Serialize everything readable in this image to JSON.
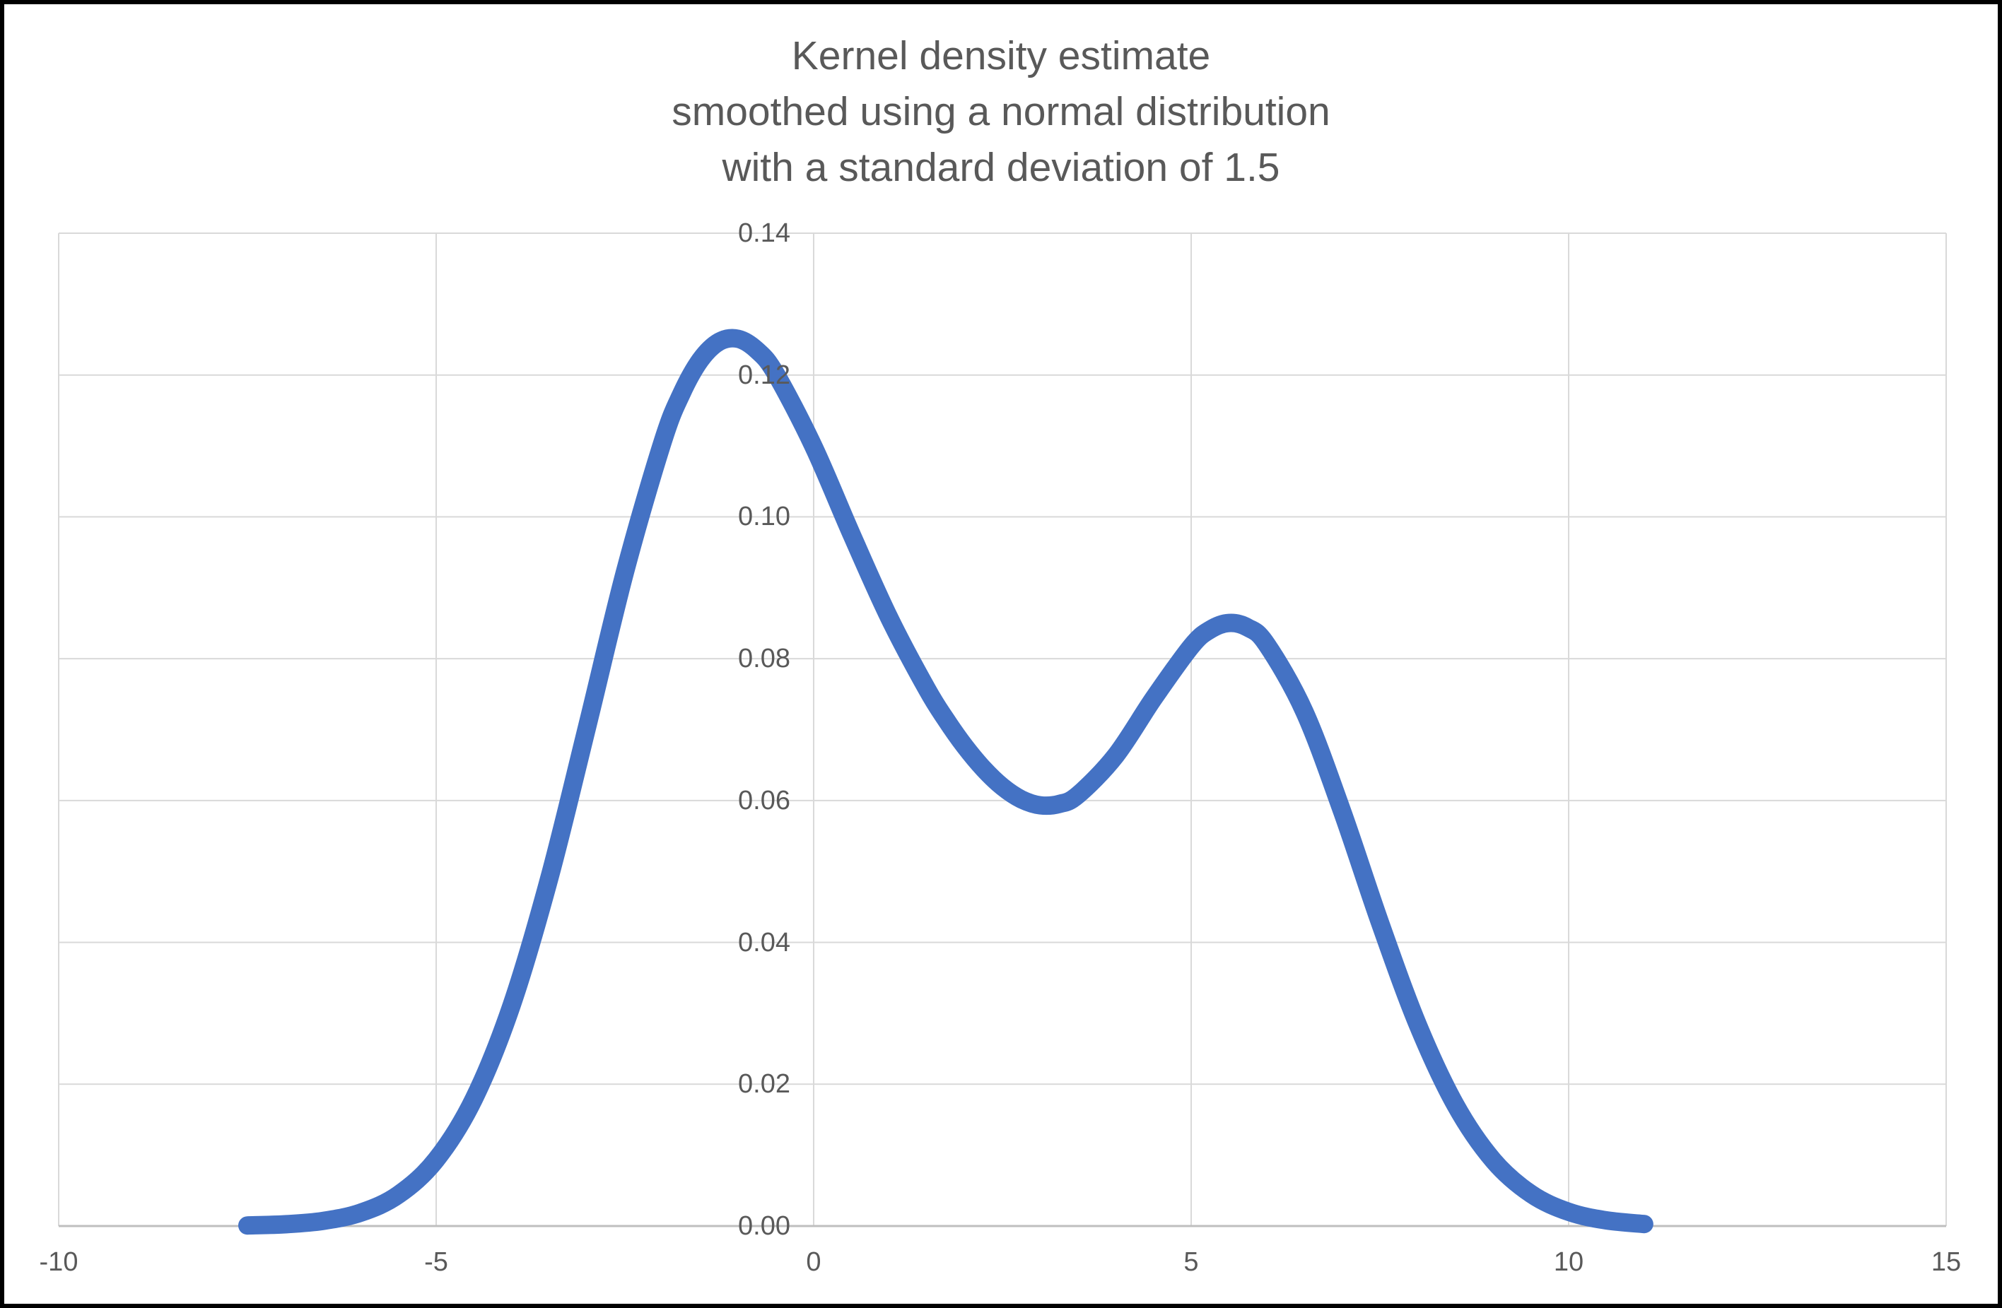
{
  "page": {
    "background": "#FFFFFF",
    "border_color": "#000000"
  },
  "chart_data": {
    "type": "line",
    "title_lines": [
      "Kernel density estimate",
      "smoothed using a normal distribution",
      "with a standard deviation of 1.5"
    ],
    "title_color": "#595959",
    "tick_label_color": "#595959",
    "grid": true,
    "gridline_color": "#D9D9D9",
    "axis_line_color": "#BFBFBF",
    "legend": false,
    "xlabel": "",
    "ylabel": "",
    "xlim": [
      -10,
      15
    ],
    "ylim": [
      0.0,
      0.14
    ],
    "x_ticks": [
      {
        "value": -10,
        "label": "-10"
      },
      {
        "value": -5,
        "label": "-5"
      },
      {
        "value": 0,
        "label": "0"
      },
      {
        "value": 5,
        "label": "5"
      },
      {
        "value": 10,
        "label": "10"
      },
      {
        "value": 15,
        "label": "15"
      }
    ],
    "y_ticks": [
      {
        "value": 0.0,
        "label": "0.00"
      },
      {
        "value": 0.02,
        "label": "0.02"
      },
      {
        "value": 0.04,
        "label": "0.04"
      },
      {
        "value": 0.06,
        "label": "0.06"
      },
      {
        "value": 0.08,
        "label": "0.08"
      },
      {
        "value": 0.1,
        "label": "0.10"
      },
      {
        "value": 0.12,
        "label": "0.12"
      },
      {
        "value": 0.14,
        "label": "0.14"
      }
    ],
    "smoothing_kernel": {
      "distribution": "normal",
      "standard_deviation": 1.5
    },
    "series": [
      {
        "name": "kernel-density-estimate",
        "color": "#4472C4",
        "stroke_width_px": 26,
        "points": [
          [
            -7.5,
            8e-05
          ],
          [
            -7,
            0.00025
          ],
          [
            -6.5,
            0.00072
          ],
          [
            -6,
            0.00188
          ],
          [
            -5.5,
            0.00441
          ],
          [
            -5,
            0.00936
          ],
          [
            -4.5,
            0.01794
          ],
          [
            -4,
            0.03115
          ],
          [
            -3.5,
            0.0491
          ],
          [
            -3,
            0.07043
          ],
          [
            -2.5,
            0.0922
          ],
          [
            -2,
            0.11059
          ],
          [
            -1.75,
            0.11738
          ],
          [
            -1.5,
            0.12213
          ],
          [
            -1.25,
            0.1247
          ],
          [
            -1,
            0.1251
          ],
          [
            -0.75,
            0.12348
          ],
          [
            -0.5,
            0.12014
          ],
          [
            0,
            0.10988
          ],
          [
            0.5,
            0.09758
          ],
          [
            1,
            0.08579
          ],
          [
            1.5,
            0.07572
          ],
          [
            1.75,
            0.07144
          ],
          [
            2,
            0.06767
          ],
          [
            2.25,
            0.06448
          ],
          [
            2.5,
            0.06194
          ],
          [
            2.75,
            0.06018
          ],
          [
            3,
            0.05933
          ],
          [
            3.25,
            0.05951
          ],
          [
            3.5,
            0.06078
          ],
          [
            4,
            0.06633
          ],
          [
            4.5,
            0.07435
          ],
          [
            5,
            0.08173
          ],
          [
            5.25,
            0.08408
          ],
          [
            5.5,
            0.08504
          ],
          [
            5.75,
            0.08439
          ],
          [
            6,
            0.08202
          ],
          [
            6.5,
            0.07253
          ],
          [
            7,
            0.05846
          ],
          [
            7.5,
            0.04282
          ],
          [
            8,
            0.02843
          ],
          [
            8.5,
            0.01708
          ],
          [
            9,
            0.00927
          ],
          [
            9.5,
            0.00454
          ],
          [
            10,
            0.002
          ],
          [
            10.5,
            0.0008
          ],
          [
            11,
            0.00028
          ]
        ]
      }
    ]
  }
}
